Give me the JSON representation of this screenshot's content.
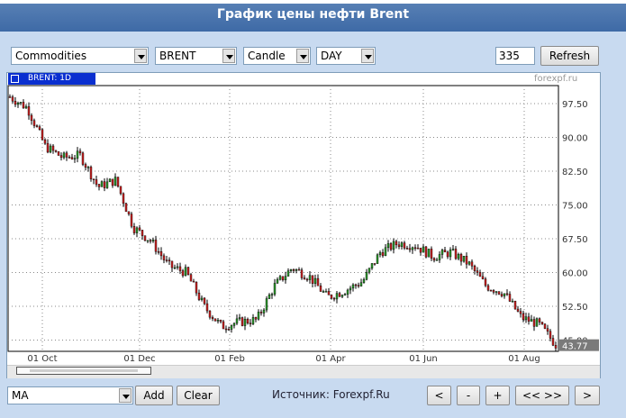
{
  "title": "График цены нефти Brent",
  "controls": {
    "group": "Commodities",
    "symbol": "BRENT",
    "chart_style": "Candle",
    "period": "DAY",
    "bars": "335",
    "refresh_label": "Refresh"
  },
  "legend_label": "BRENT: 1D",
  "brand": "forexpf.ru",
  "bottom": {
    "indicator": "MA",
    "add_label": "Add",
    "clear_label": "Clear",
    "source": "Источник: Forexpf.Ru",
    "nav_prev": "<",
    "nav_zoom_out": "-",
    "nav_zoom_in": "+",
    "nav_fit": "<< >>",
    "nav_next": ">"
  },
  "chart_data": {
    "type": "candlestick",
    "title": "",
    "xlabel": "",
    "ylabel": "",
    "x_tick_labels": [
      "01 Oct",
      "01 Dec",
      "01 Feb",
      "01 Apr",
      "01 Jun",
      "01 Aug"
    ],
    "y_tick_labels": [
      "97.50",
      "90.00",
      "82.50",
      "75.00",
      "67.50",
      "60.00",
      "52.50",
      "45.00"
    ],
    "ylim": [
      42.5,
      101.5
    ],
    "last_price": "43.77",
    "grid": true,
    "approx_close_path": [
      {
        "x": "Sep",
        "y": 99.0
      },
      {
        "x": "01 Oct",
        "y": 96.5
      },
      {
        "x": "Oct",
        "y": 88.0
      },
      {
        "x": "Oct",
        "y": 85.5
      },
      {
        "x": "Nov",
        "y": 86.0
      },
      {
        "x": "Nov",
        "y": 79.0
      },
      {
        "x": "Nov",
        "y": 80.5
      },
      {
        "x": "01 Dec",
        "y": 70.0
      },
      {
        "x": "Dec",
        "y": 67.0
      },
      {
        "x": "Dec",
        "y": 61.5
      },
      {
        "x": "Jan",
        "y": 60.0
      },
      {
        "x": "Jan",
        "y": 52.5
      },
      {
        "x": "Jan",
        "y": 48.0
      },
      {
        "x": "Jan",
        "y": 49.0
      },
      {
        "x": "01 Feb",
        "y": 49.5
      },
      {
        "x": "Feb",
        "y": 57.0
      },
      {
        "x": "Feb",
        "y": 61.0
      },
      {
        "x": "Mar",
        "y": 59.0
      },
      {
        "x": "Mar",
        "y": 54.5
      },
      {
        "x": "Mar",
        "y": 56.0
      },
      {
        "x": "01 Apr",
        "y": 58.0
      },
      {
        "x": "Apr",
        "y": 64.5
      },
      {
        "x": "May",
        "y": 66.5
      },
      {
        "x": "May",
        "y": 66.0
      },
      {
        "x": "01 Jun",
        "y": 63.5
      },
      {
        "x": "Jun",
        "y": 64.5
      },
      {
        "x": "Jul",
        "y": 62.0
      },
      {
        "x": "Jul",
        "y": 57.0
      },
      {
        "x": "Jul",
        "y": 55.5
      },
      {
        "x": "01 Aug",
        "y": 50.0
      },
      {
        "x": "Aug",
        "y": 48.5
      },
      {
        "x": "Aug",
        "y": 43.77
      }
    ]
  },
  "colors": {
    "title_bar": "#4a74ad",
    "background": "#c8daf0",
    "candle_up": "#2e9a2e",
    "candle_down": "#cc2222",
    "legend_bg": "#0a2fd0"
  }
}
